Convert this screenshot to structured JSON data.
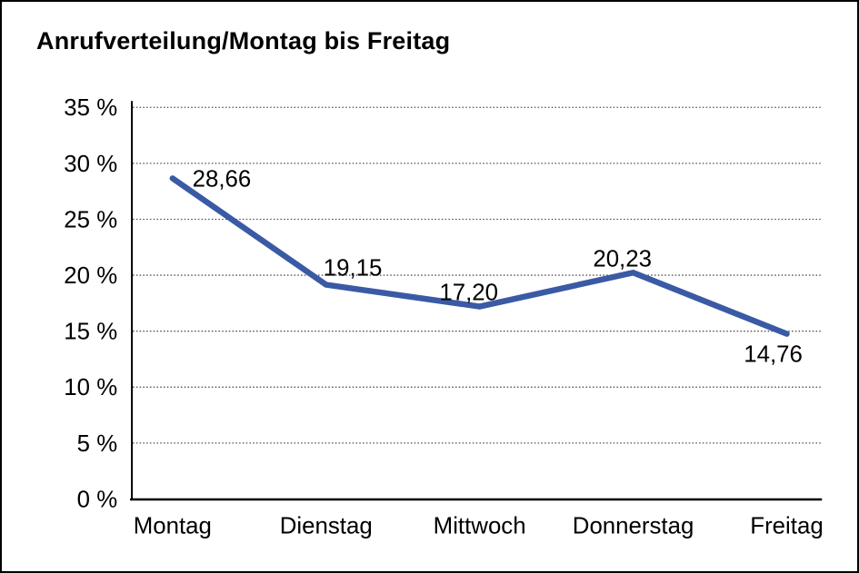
{
  "frame": {
    "background": "#ffffff",
    "border_color": "#000000"
  },
  "chart_data": {
    "type": "line",
    "title": "Anrufverteilung/Montag bis Freitag",
    "categories": [
      "Montag",
      "Dienstag",
      "Mittwoch",
      "Donnerstag",
      "Freitag"
    ],
    "values": [
      28.66,
      19.15,
      17.2,
      20.23,
      14.76
    ],
    "value_labels": [
      "28,66",
      "19,15",
      "17,20",
      "20,23",
      "14,76"
    ],
    "value_label_positions": [
      "right",
      "above-right",
      "above",
      "above",
      "below"
    ],
    "xlabel": "",
    "ylabel": "",
    "ylim": [
      0,
      35
    ],
    "y_tick_step": 5,
    "y_tick_labels": [
      "0 %",
      "5 %",
      "10 %",
      "15 %",
      "20 %",
      "25 %",
      "30 %",
      "35 %"
    ],
    "grid": "horizontal-dotted",
    "legend": "none",
    "line_color": "#3A5AA5",
    "axis_color": "#000000",
    "gridline_color": "#4d4d4d",
    "text_color": "#000000"
  }
}
